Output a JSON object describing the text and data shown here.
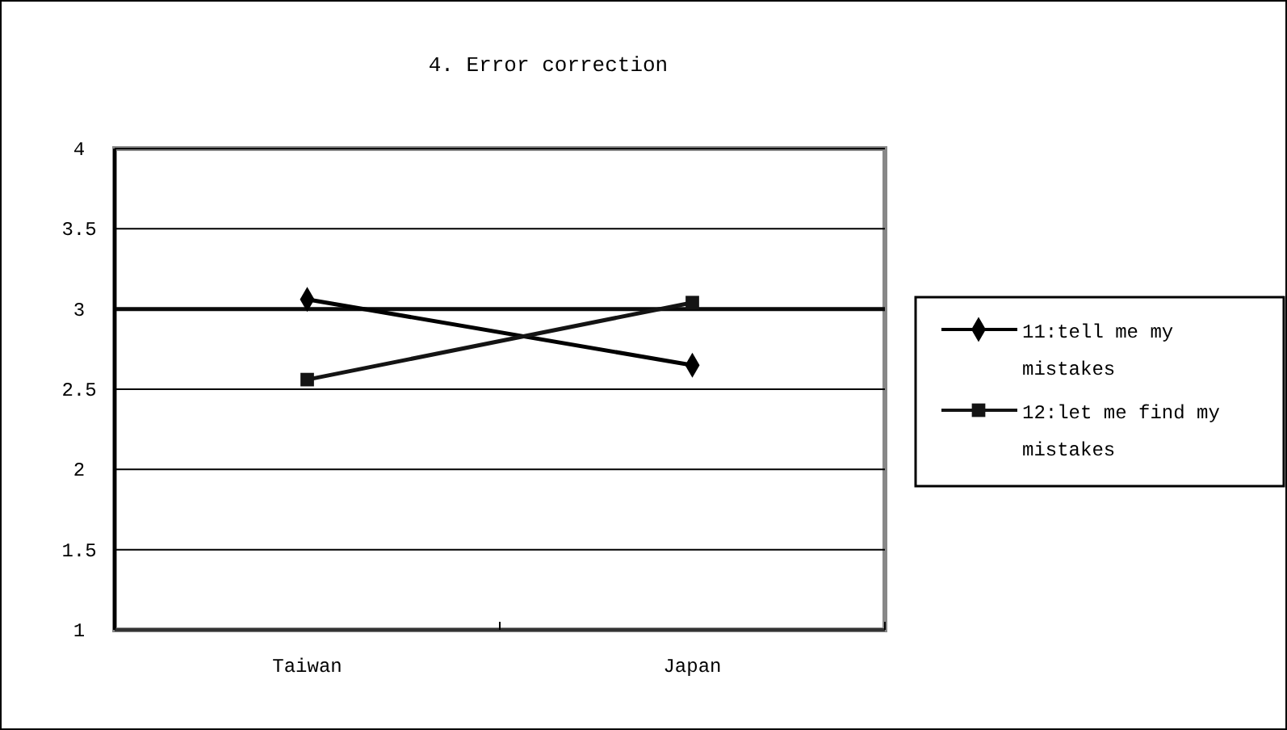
{
  "chart_data": {
    "type": "line",
    "title": "4. Error correction",
    "categories": [
      "Taiwan",
      "Japan"
    ],
    "series": [
      {
        "name": "11:tell me my mistakes",
        "color": "#000000",
        "marker": "diamond",
        "values": [
          3.06,
          2.65
        ]
      },
      {
        "name": "12:let me find my mistakes",
        "color": "#141414",
        "marker": "square",
        "values": [
          2.56,
          3.04
        ]
      }
    ],
    "ylim": [
      1,
      4
    ],
    "yticks": [
      1,
      {
        "value": 1.5,
        "label": "1.5"
      },
      2,
      {
        "value": 2.5,
        "label": "2.5"
      },
      3,
      {
        "value": 3.5,
        "label": "3.5"
      },
      4
    ],
    "grid": "y",
    "legend": "right",
    "ref_lines": [
      {
        "axis": "y",
        "value": 3,
        "color": "#0a0a0a"
      }
    ]
  }
}
